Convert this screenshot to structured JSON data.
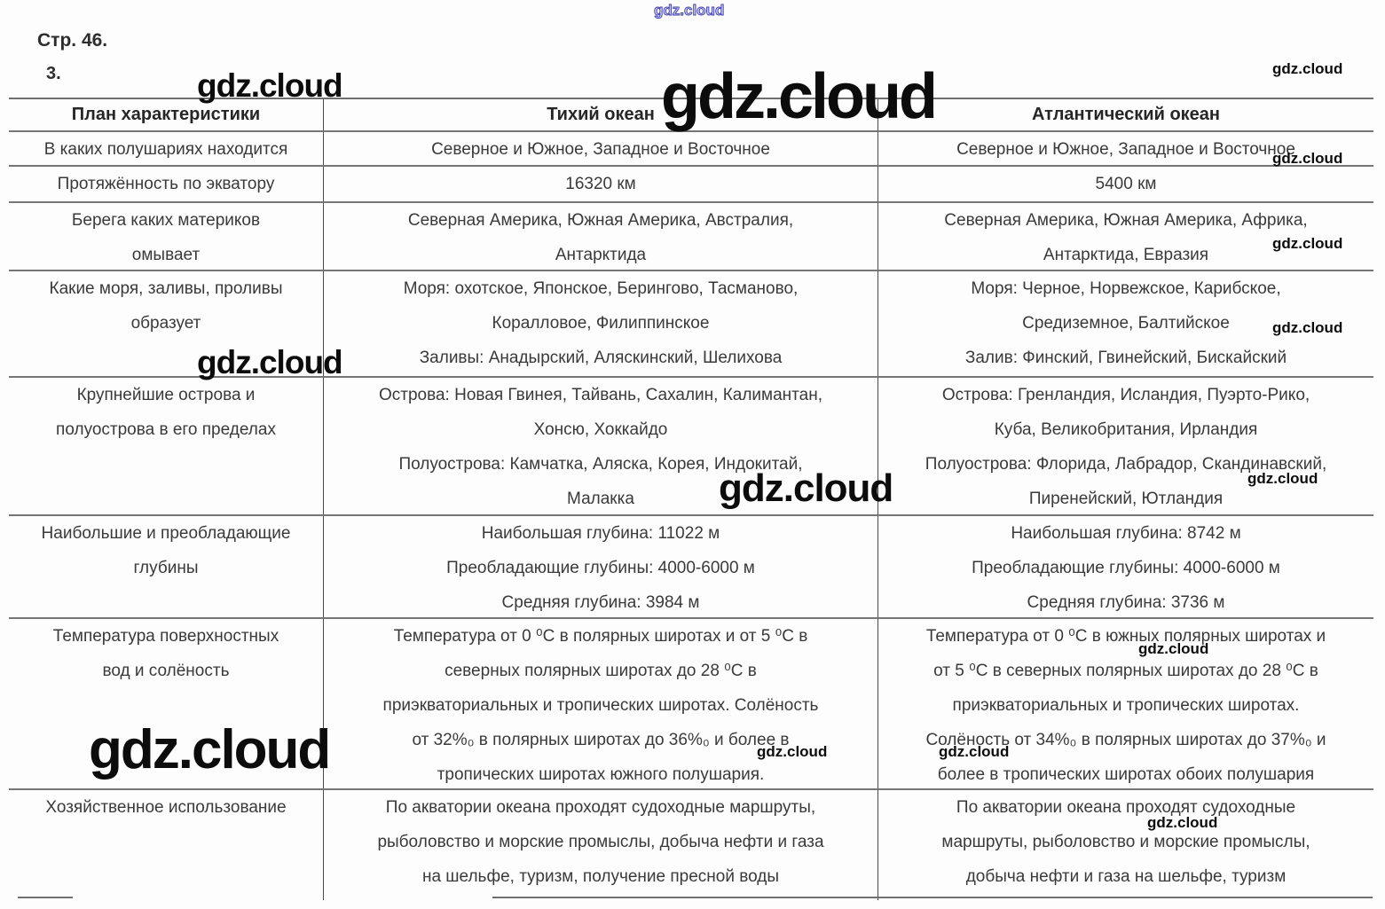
{
  "page": {
    "heading": "Стр. 46.",
    "item_number": "3."
  },
  "watermark_text": "gdz.cloud",
  "table": {
    "columns": [
      "План характеристики",
      "Тихий океан",
      "Атлантический океан"
    ],
    "rows": [
      {
        "plan": [
          "В каких полушариях находится"
        ],
        "pacific": [
          "Северное и Южное, Западное и Восточное"
        ],
        "atlantic": [
          "Северное и Южное, Западное и Восточное"
        ]
      },
      {
        "plan": [
          "Протяжённость по экватору"
        ],
        "pacific": [
          "16320 км"
        ],
        "atlantic": [
          "5400 км"
        ]
      },
      {
        "plan": [
          "Берега каких материков",
          "омывает"
        ],
        "pacific": [
          "Северная Америка, Южная Америка, Австралия,",
          "Антарктида"
        ],
        "atlantic": [
          "Северная Америка, Южная Америка, Африка,",
          "Антарктида, Евразия"
        ]
      },
      {
        "plan": [
          "Какие моря, заливы, проливы",
          "образует"
        ],
        "pacific": [
          "Моря: охотское, Японское, Берингово, Тасманово,",
          "Коралловое, Филиппинское",
          "Заливы: Анадырский, Аляскинский, Шелихова"
        ],
        "atlantic": [
          "Моря: Черное, Норвежское, Карибское,",
          "Средиземное, Балтийское",
          "Залив: Финский, Гвинейский, Бискайский"
        ]
      },
      {
        "plan": [
          "Крупнейшие острова и",
          "полуострова в его пределах"
        ],
        "pacific": [
          "Острова: Новая Гвинея, Тайвань, Сахалин, Калимантан,",
          "Хонсю, Хоккайдо",
          "Полуострова: Камчатка, Аляска, Корея, Индокитай,",
          "Малакка"
        ],
        "atlantic": [
          "Острова: Гренландия, Исландия, Пуэрто-Рико,",
          "Куба, Великобритания, Ирландия",
          "Полуострова: Флорида, Лабрадор, Скандинавский,",
          "Пиренейский, Ютландия"
        ]
      },
      {
        "plan": [
          "Наибольшие и преобладающие",
          "глубины"
        ],
        "pacific": [
          "Наибольшая глубина: 11022 м",
          "Преобладающие глубины: 4000-6000 м",
          "Средняя глубина: 3984 м"
        ],
        "atlantic": [
          "Наибольшая глубина: 8742 м",
          "Преобладающие глубины: 4000-6000 м",
          "Средняя глубина: 3736 м"
        ]
      },
      {
        "plan": [
          "Температура поверхностных",
          "вод и солёность"
        ],
        "pacific": [
          "Температура от 0 ⁰С в полярных широтах и от 5 ⁰С в",
          "северных полярных широтах до 28 ⁰С в",
          "приэкваториальных и тропических широтах. Солёность",
          "от 32%₀ в полярных широтах до 36%₀ и более в",
          "тропических широтах южного полушария."
        ],
        "atlantic": [
          "Температура от 0 ⁰С в южных полярных широтах и",
          "от 5 ⁰С в северных полярных широтах до 28 ⁰С в",
          "приэкваториальных и тропических широтах.",
          "Солёность от 34%₀ в полярных широтах до 37%₀ и",
          "более в тропических широтах обоих полушария"
        ]
      },
      {
        "plan": [
          "Хозяйственное использование"
        ],
        "pacific": [
          "По акватории океана проходят судоходные маршруты,",
          "рыболовство и морские промыслы, добыча нефти и газа",
          "на шельфе, туризм, получение пресной воды"
        ],
        "atlantic": [
          "По акватории океана проходят судоходные",
          "маршруты, рыболовство и морские промыслы,",
          "добыча нефти и газа на шельфе, туризм"
        ]
      }
    ]
  }
}
